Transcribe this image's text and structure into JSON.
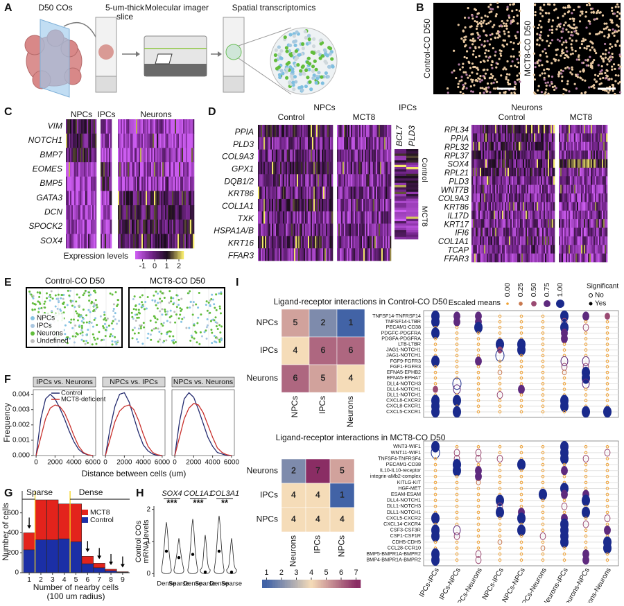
{
  "panel_labels": [
    "A",
    "B",
    "C",
    "D",
    "E",
    "F",
    "G",
    "H",
    "I"
  ],
  "a": {
    "steps": [
      [
        "D50 COs"
      ],
      [
        "5-um-thick",
        "slice"
      ],
      [
        "Molecular imager"
      ],
      [
        "Spatial transcriptomics"
      ]
    ]
  },
  "b": {
    "titles": [
      "Control-CO D50",
      "MCT8-CO D50"
    ]
  },
  "c": {
    "groups": [
      "NPCs",
      "IPCs",
      "Neurons"
    ],
    "genes": [
      "VIM",
      "NOTCH1",
      "BMP7",
      "EOMES",
      "BMP5",
      "GATA3",
      "DCN",
      "SPOCK2",
      "SOX4"
    ],
    "legend_title": "Expression levels",
    "legend_ticks": [
      -1,
      0,
      1,
      2
    ],
    "legend_lim": [
      -1.6,
      2.4
    ]
  },
  "d": {
    "npcs_title": "NPCs",
    "npcs_groups": [
      "Control",
      "MCT8"
    ],
    "npcs_genes": [
      "PPIA",
      "PLD3",
      "COL9A3",
      "GPX1",
      "DQB1/2",
      "KRT86",
      "COL1A1",
      "TXK",
      "HSPA1A/B",
      "KRT16",
      "FFAR3"
    ],
    "ipcs_title": "IPCs",
    "ipcs_genes": [
      "BCL7",
      "PLD3"
    ],
    "ipcs_groups": [
      "Control",
      "MCT8"
    ],
    "neurons_title": "Neurons",
    "neurons_groups": [
      "Control",
      "MCT8"
    ],
    "neurons_genes": [
      "RPL34",
      "PPIA",
      "RPL32",
      "RPL37",
      "SOX4",
      "RPL21",
      "PLD3",
      "WNT7B",
      "COL9A3",
      "KRT86",
      "IL17D",
      "KRT17",
      "IFI6",
      "COL1A1",
      "TCAP",
      "FFAR3"
    ]
  },
  "e": {
    "titles": [
      "Control-CO D50",
      "MCT8-CO D50"
    ],
    "legend": [
      "NPCs",
      "IPCs",
      "Neurons",
      "Undefined"
    ],
    "legend_colors": [
      "#86c3e3",
      "#a9c6e0",
      "#62bd3c",
      "#bdbdbd"
    ]
  },
  "f": {
    "type": "line",
    "strips": [
      "IPCs vs. Neurons",
      "NPCs vs. IPCs",
      "NPCs vs. Neurons"
    ],
    "ylabel": "Frequency",
    "xlabel": "Distance between cells (um)",
    "x": [
      0,
      500,
      1000,
      1500,
      2000,
      2500,
      3000,
      3500,
      4000,
      4500,
      5000,
      5500,
      6000
    ],
    "xlim": [
      -300,
      6300
    ],
    "xticks": [
      0,
      2000,
      4000,
      6000
    ],
    "ylim": [
      0,
      0.0043
    ],
    "yticks": [
      {
        "value": 0,
        "label": "0.000"
      },
      {
        "value": 0.001,
        "label": "0.001"
      },
      {
        "value": 0.002,
        "label": "0.002"
      },
      {
        "value": 0.003,
        "label": "0.003"
      },
      {
        "value": 0.004,
        "label": "0.004"
      }
    ],
    "series": [
      {
        "name": "Control",
        "color": "#232a6e",
        "values": [
          [
            0,
            0.0024,
            0.0037,
            0.004,
            0.0037,
            0.0031,
            0.0024,
            0.0016,
            0.0009,
            0.0004,
            0.00015,
            4e-05,
            0
          ],
          [
            0,
            0.0018,
            0.0032,
            0.004,
            0.0041,
            0.0035,
            0.0025,
            0.0015,
            0.0007,
            0.0003,
            0.0001,
            0,
            0
          ],
          [
            0,
            0.0022,
            0.0037,
            0.0041,
            0.0038,
            0.003,
            0.0021,
            0.0012,
            0.0006,
            0.0002,
            0.0001,
            0,
            0
          ]
        ]
      },
      {
        "name": "MCT8-deficient",
        "color": "#c8302c",
        "values": [
          [
            0,
            0.0012,
            0.0024,
            0.0031,
            0.0033,
            0.0032,
            0.0028,
            0.0021,
            0.0013,
            0.0006,
            0.0002,
            5e-05,
            0
          ],
          [
            0,
            0.0011,
            0.0022,
            0.0029,
            0.0032,
            0.0033,
            0.003,
            0.0023,
            0.0014,
            0.0006,
            0.0002,
            5e-05,
            0
          ],
          [
            0,
            0.0012,
            0.0024,
            0.0031,
            0.0034,
            0.0033,
            0.0028,
            0.002,
            0.0012,
            0.0005,
            0.0002,
            5e-05,
            0
          ]
        ]
      }
    ]
  },
  "g": {
    "type": "bar",
    "stacked": true,
    "x": [
      1,
      2,
      3,
      4,
      5,
      6,
      7,
      8,
      9
    ],
    "xlim": [
      0.4,
      9.6
    ],
    "ylim": [
      0,
      820
    ],
    "yticks": [
      0,
      200,
      400,
      600
    ],
    "ylabel": "Number of cells",
    "xlabel": [
      "Number of nearby cells",
      "(100 um radius)"
    ],
    "regions": [
      "Sparse",
      "Dense"
    ],
    "thresholds": [
      1.5,
      4.5
    ],
    "arrows": [
      1,
      6,
      7,
      8,
      9
    ],
    "series": [
      {
        "name": "MCT8",
        "color": "#e3231c",
        "values": [
          170,
          400,
          400,
          350,
          380,
          75,
          45,
          15,
          5
        ]
      },
      {
        "name": "Control",
        "color": "#1b2fa6",
        "values": [
          230,
          330,
          330,
          340,
          310,
          90,
          50,
          20,
          5
        ]
      }
    ]
  },
  "h": {
    "type": "violin",
    "genes": [
      "SOX4",
      "COL1A1",
      "COL3A1"
    ],
    "stars": [
      "***",
      "***",
      "**"
    ],
    "categories": [
      "Dense",
      "Sparse"
    ],
    "ylabel": [
      "Control COs",
      "mRNA levels"
    ],
    "ylim": [
      -0.1,
      2.1
    ],
    "yticks": [
      0,
      1,
      2
    ],
    "means": [
      [
        0.7,
        0.5
      ],
      [
        0.6,
        0.05
      ],
      [
        0.7,
        0.05
      ]
    ],
    "maxima": [
      [
        1.6,
        1.1
      ],
      [
        1.7,
        1.2
      ],
      [
        1.8,
        1.1
      ]
    ]
  },
  "i": {
    "titles": [
      "Ligand-receptor interactions in Control-CO D50",
      "Ligand-receptor interactions in MCT8-CO D50"
    ],
    "matrix_control": {
      "rows": [
        "NPCs",
        "IPCs",
        "Neurons"
      ],
      "cols": [
        "NPCs",
        "IPCs",
        "Neurons"
      ],
      "values": [
        [
          5,
          2,
          1
        ],
        [
          4,
          6,
          6
        ],
        [
          6,
          5,
          4
        ]
      ]
    },
    "matrix_mct8": {
      "rows": [
        "Neurons",
        "IPCs",
        "NPCs"
      ],
      "cols": [
        "Neurons",
        "IPCs",
        "NPCs"
      ],
      "values": [
        [
          2,
          7,
          5
        ],
        [
          4,
          4,
          1
        ],
        [
          4,
          4,
          4
        ]
      ]
    },
    "scale_colors": [
      "#4263a6",
      "#f5dcb8",
      "#8a2d64"
    ],
    "scale_ticks": [
      1,
      2,
      3,
      4,
      5,
      6,
      7
    ],
    "scale_lim": [
      0.7,
      7.3
    ],
    "dot_legend_title": "Escaled means",
    "dot_legend_ticks": [
      {
        "value": 0,
        "label": "0.00"
      },
      {
        "value": 0.25,
        "label": "0.25"
      },
      {
        "value": 0.5,
        "label": "0.50"
      },
      {
        "value": 0.75,
        "label": "0.75"
      },
      {
        "value": 1,
        "label": "1.00"
      }
    ],
    "dot_colors": [
      "#f0a030",
      "#c8784e",
      "#9a4a72",
      "#5e2a7e",
      "#1a2a8c"
    ],
    "sig_title": "Significant",
    "sig_labels": [
      "No",
      "Yes"
    ],
    "pairs": [
      "IPCs-IPCs",
      "IPCs-NPCs",
      "IPCs-Neurons",
      "NPCs-IPCs",
      "NPCs-NPCs",
      "NPCs-Neurons",
      "Neurons-IPCs",
      "Neurons-NPCs",
      "Neurons-Neurons"
    ],
    "dot_control": {
      "rows": [
        "TNFSF14-TNFRSF14",
        "TNFSF14-LTBR",
        "PECAM1-CD38",
        "PDGFC-PDGFRA",
        "PDGFA-PDGFRA",
        "LTB-LTBR",
        "JAG1-NOTCH1",
        "JAG1-NOTCH1",
        "FGF9-FGFR3",
        "FGF1-FGFR3",
        "EFNA5-EPHB2",
        "EFNA5-EPHA7",
        "DLL4-NOTCH3",
        "DLL4-NOTCH1",
        "DLL1-NOTCH1",
        "CXCL8-CXCR2",
        "CXCL8-CXCR1",
        "CXCL5-CXCR1"
      ],
      "means": [
        [
          1,
          0.75,
          0.75,
          0,
          0,
          0,
          1,
          0.75,
          0.5
        ],
        [
          1,
          0.75,
          0.75,
          0,
          0,
          0,
          0.5,
          0,
          0
        ],
        [
          0,
          0,
          1,
          0,
          0,
          0,
          1,
          0.5,
          0
        ],
        [
          1,
          0,
          0,
          0,
          0,
          0,
          0.75,
          0,
          0
        ],
        [
          0,
          0,
          0,
          0,
          0,
          0,
          0.75,
          0,
          0
        ],
        [
          0,
          0,
          0,
          1,
          1,
          0,
          0,
          0,
          0
        ],
        [
          0,
          0,
          0,
          0.5,
          1,
          0,
          0,
          0,
          0
        ],
        [
          0,
          0,
          0,
          1,
          0,
          0,
          0,
          0,
          0
        ],
        [
          1,
          0,
          0.75,
          0,
          0,
          0,
          0.75,
          0.75,
          0
        ],
        [
          0,
          0,
          0,
          0,
          0,
          0,
          0.5,
          0.5,
          0
        ],
        [
          0,
          0,
          0,
          0.25,
          0,
          0,
          0.25,
          1,
          0
        ],
        [
          0,
          0,
          0,
          0,
          0,
          0,
          0,
          1,
          0
        ],
        [
          0,
          1,
          0,
          0,
          0,
          0,
          0,
          0.75,
          0
        ],
        [
          0.5,
          0.75,
          0,
          0,
          0.75,
          0,
          0,
          0,
          0
        ],
        [
          0,
          0,
          0,
          0.5,
          0,
          0,
          0,
          0,
          0
        ],
        [
          1,
          1,
          0,
          0,
          0,
          0,
          1,
          0,
          0
        ],
        [
          1,
          0,
          0,
          0,
          0,
          0,
          1,
          0,
          0
        ],
        [
          1,
          1,
          0,
          0,
          0,
          0,
          0,
          1,
          1
        ]
      ],
      "significant": [
        [
          1,
          1,
          1,
          0,
          0,
          0,
          1,
          1,
          1
        ],
        [
          1,
          1,
          1,
          0,
          0,
          0,
          0,
          0,
          0
        ],
        [
          0,
          0,
          1,
          0,
          0,
          0,
          1,
          0,
          0
        ],
        [
          1,
          0,
          0,
          0,
          0,
          0,
          1,
          0,
          0
        ],
        [
          0,
          0,
          0,
          0,
          0,
          0,
          1,
          0,
          0
        ],
        [
          0,
          0,
          0,
          1,
          1,
          0,
          0,
          0,
          0
        ],
        [
          0,
          0,
          0,
          1,
          1,
          0,
          0,
          0,
          0
        ],
        [
          0,
          0,
          0,
          0,
          0,
          0,
          0,
          0,
          0
        ],
        [
          1,
          0,
          1,
          0,
          0,
          0,
          0,
          0,
          0
        ],
        [
          0,
          0,
          0,
          0,
          0,
          0,
          0,
          0,
          0
        ],
        [
          0,
          0,
          0,
          0,
          0,
          0,
          0,
          1,
          0
        ],
        [
          0,
          0,
          0,
          0,
          0,
          0,
          0,
          1,
          0
        ],
        [
          0,
          0,
          0,
          0,
          0,
          0,
          0,
          0,
          0
        ],
        [
          1,
          0,
          0,
          0,
          1,
          0,
          0,
          0,
          0
        ],
        [
          0,
          0,
          0,
          0,
          0,
          0,
          0,
          0,
          0
        ],
        [
          1,
          1,
          0,
          0,
          0,
          0,
          1,
          0,
          0
        ],
        [
          1,
          0,
          0,
          0,
          0,
          0,
          1,
          0,
          0
        ],
        [
          1,
          1,
          0,
          0,
          0,
          0,
          0,
          1,
          1
        ]
      ]
    },
    "dot_mct8": {
      "rows": [
        "WNT3-WIF1",
        "WNT11-WIF1",
        "TNFSF4-TNFRSF4",
        "PECAM1-CD38",
        "IL10-IL10-receptor",
        "integrin-aMb2-complex",
        "KITLG-KIT",
        "HGF-MET",
        "ESAM-ESAM",
        "DLL4-NOTCH1",
        "DLL1-NOTCH3",
        "DLL1-NOTCH1",
        "CXCL5-CXCR2",
        "CXCL14-CXCR4",
        "CSF3-CSF3R",
        "CSF1-CSF1R",
        "CDH5-CDH5",
        "CCL28-CCR10",
        "BMP5-BMPR1A-BMPR2",
        "BMP4-BMPR1A-BMPR2"
      ],
      "means": [
        [
          1,
          0,
          0,
          0,
          0,
          0,
          1,
          0,
          0
        ],
        [
          1,
          0.5,
          0.5,
          0,
          0,
          0,
          1,
          0,
          0.5
        ],
        [
          0,
          0.5,
          0.5,
          0.5,
          0,
          0,
          1,
          0.5,
          0
        ],
        [
          0,
          1,
          0,
          0,
          1,
          0,
          0,
          0,
          0
        ],
        [
          0,
          1,
          0.75,
          0,
          0,
          0,
          0.75,
          0,
          0
        ],
        [
          0,
          0,
          0.75,
          0,
          0,
          0,
          0,
          0,
          0
        ],
        [
          0,
          0,
          0.25,
          0,
          0,
          0,
          0,
          0,
          0
        ],
        [
          0,
          0,
          0,
          0,
          0,
          0,
          1,
          0,
          0
        ],
        [
          0,
          0,
          0,
          0,
          0,
          1,
          0.75,
          0.75,
          0
        ],
        [
          0,
          0,
          0,
          1,
          0,
          0,
          0,
          1,
          0
        ],
        [
          0,
          0,
          0,
          0.5,
          0,
          0,
          0.5,
          0,
          0
        ],
        [
          0,
          0,
          0,
          1,
          0.75,
          0,
          0,
          1,
          0
        ],
        [
          1,
          0,
          0,
          0,
          1,
          0,
          0.75,
          0,
          0.5
        ],
        [
          0,
          0,
          0,
          0,
          0,
          0,
          1,
          0.5,
          0
        ],
        [
          1,
          0.75,
          0,
          0,
          1,
          0,
          1,
          0,
          0.75
        ],
        [
          1,
          0.5,
          0,
          0,
          0,
          0.5,
          1,
          0,
          0
        ],
        [
          0,
          0,
          0,
          0.25,
          0,
          0,
          1,
          0,
          1
        ],
        [
          0,
          0,
          0,
          0,
          0,
          0.25,
          0,
          0,
          1
        ],
        [
          1,
          0,
          0.5,
          0,
          0,
          0,
          0,
          0.75,
          0
        ],
        [
          1,
          0,
          0.5,
          0,
          0,
          0,
          0,
          0.75,
          0
        ]
      ],
      "significant": [
        [
          1,
          0,
          0,
          0,
          0,
          0,
          1,
          0,
          0
        ],
        [
          0,
          0,
          0,
          0,
          0,
          0,
          1,
          0,
          0
        ],
        [
          0,
          0,
          0,
          0,
          0,
          0,
          1,
          0,
          0
        ],
        [
          0,
          1,
          0,
          0,
          1,
          0,
          0,
          0,
          0
        ],
        [
          0,
          1,
          1,
          0,
          0,
          0,
          1,
          0,
          0
        ],
        [
          0,
          0,
          1,
          0,
          0,
          0,
          0,
          0,
          0
        ],
        [
          0,
          0,
          0,
          0,
          0,
          0,
          0,
          0,
          0
        ],
        [
          0,
          0,
          0,
          0,
          0,
          0,
          1,
          0,
          0
        ],
        [
          0,
          0,
          0,
          0,
          0,
          1,
          1,
          1,
          0
        ],
        [
          0,
          0,
          0,
          1,
          0,
          0,
          0,
          1,
          0
        ],
        [
          0,
          0,
          0,
          0,
          0,
          0,
          0,
          0,
          0
        ],
        [
          0,
          0,
          0,
          1,
          1,
          0,
          0,
          1,
          0
        ],
        [
          1,
          0,
          0,
          0,
          1,
          0,
          1,
          0,
          0
        ],
        [
          0,
          0,
          0,
          0,
          0,
          0,
          1,
          0,
          0
        ],
        [
          1,
          0,
          0,
          0,
          1,
          0,
          1,
          0,
          1
        ],
        [
          1,
          0,
          0,
          0,
          0,
          0,
          1,
          0,
          0
        ],
        [
          0,
          0,
          0,
          0,
          0,
          0,
          1,
          0,
          1
        ],
        [
          0,
          0,
          0,
          0,
          0,
          0,
          0,
          0,
          1
        ],
        [
          1,
          0,
          0,
          0,
          0,
          0,
          0,
          1,
          0
        ],
        [
          1,
          0,
          0,
          0,
          0,
          0,
          0,
          1,
          0
        ]
      ]
    }
  }
}
